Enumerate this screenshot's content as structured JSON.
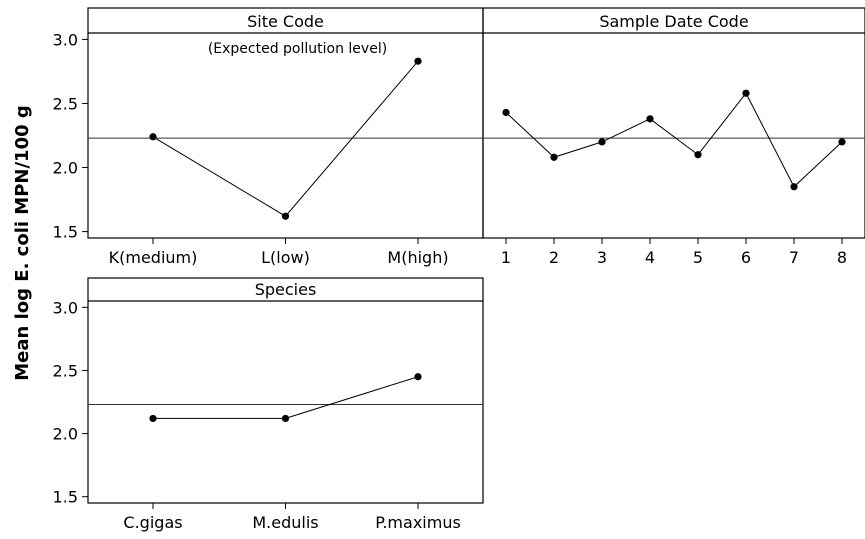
{
  "chart_data": [
    {
      "type": "line",
      "title": "Site Code",
      "annotation": "(Expected pollution level)",
      "categories": [
        "K(medium)",
        "L(low)",
        "M(high)"
      ],
      "values": [
        2.24,
        1.62,
        2.83
      ],
      "reference_line": 2.23,
      "ylim": [
        1.45,
        3.05
      ],
      "yticks": [
        1.5,
        2.0,
        2.5,
        3.0
      ]
    },
    {
      "type": "line",
      "title": "Sample Date Code",
      "categories": [
        "1",
        "2",
        "3",
        "4",
        "5",
        "6",
        "7",
        "8"
      ],
      "values": [
        2.43,
        2.08,
        2.2,
        2.38,
        2.1,
        2.58,
        1.85,
        2.2
      ],
      "reference_line": 2.23,
      "ylim": [
        1.45,
        3.05
      ],
      "yticks": [
        1.5,
        2.0,
        2.5,
        3.0
      ]
    },
    {
      "type": "line",
      "title": "Species",
      "categories": [
        "C.gigas",
        "M.edulis",
        "P.maximus"
      ],
      "values": [
        2.12,
        2.12,
        2.45
      ],
      "reference_line": 2.23,
      "ylim": [
        1.45,
        3.05
      ],
      "yticks": [
        1.5,
        2.0,
        2.5,
        3.0
      ]
    }
  ],
  "ylabel": "Mean log E. coli MPN/100 g"
}
